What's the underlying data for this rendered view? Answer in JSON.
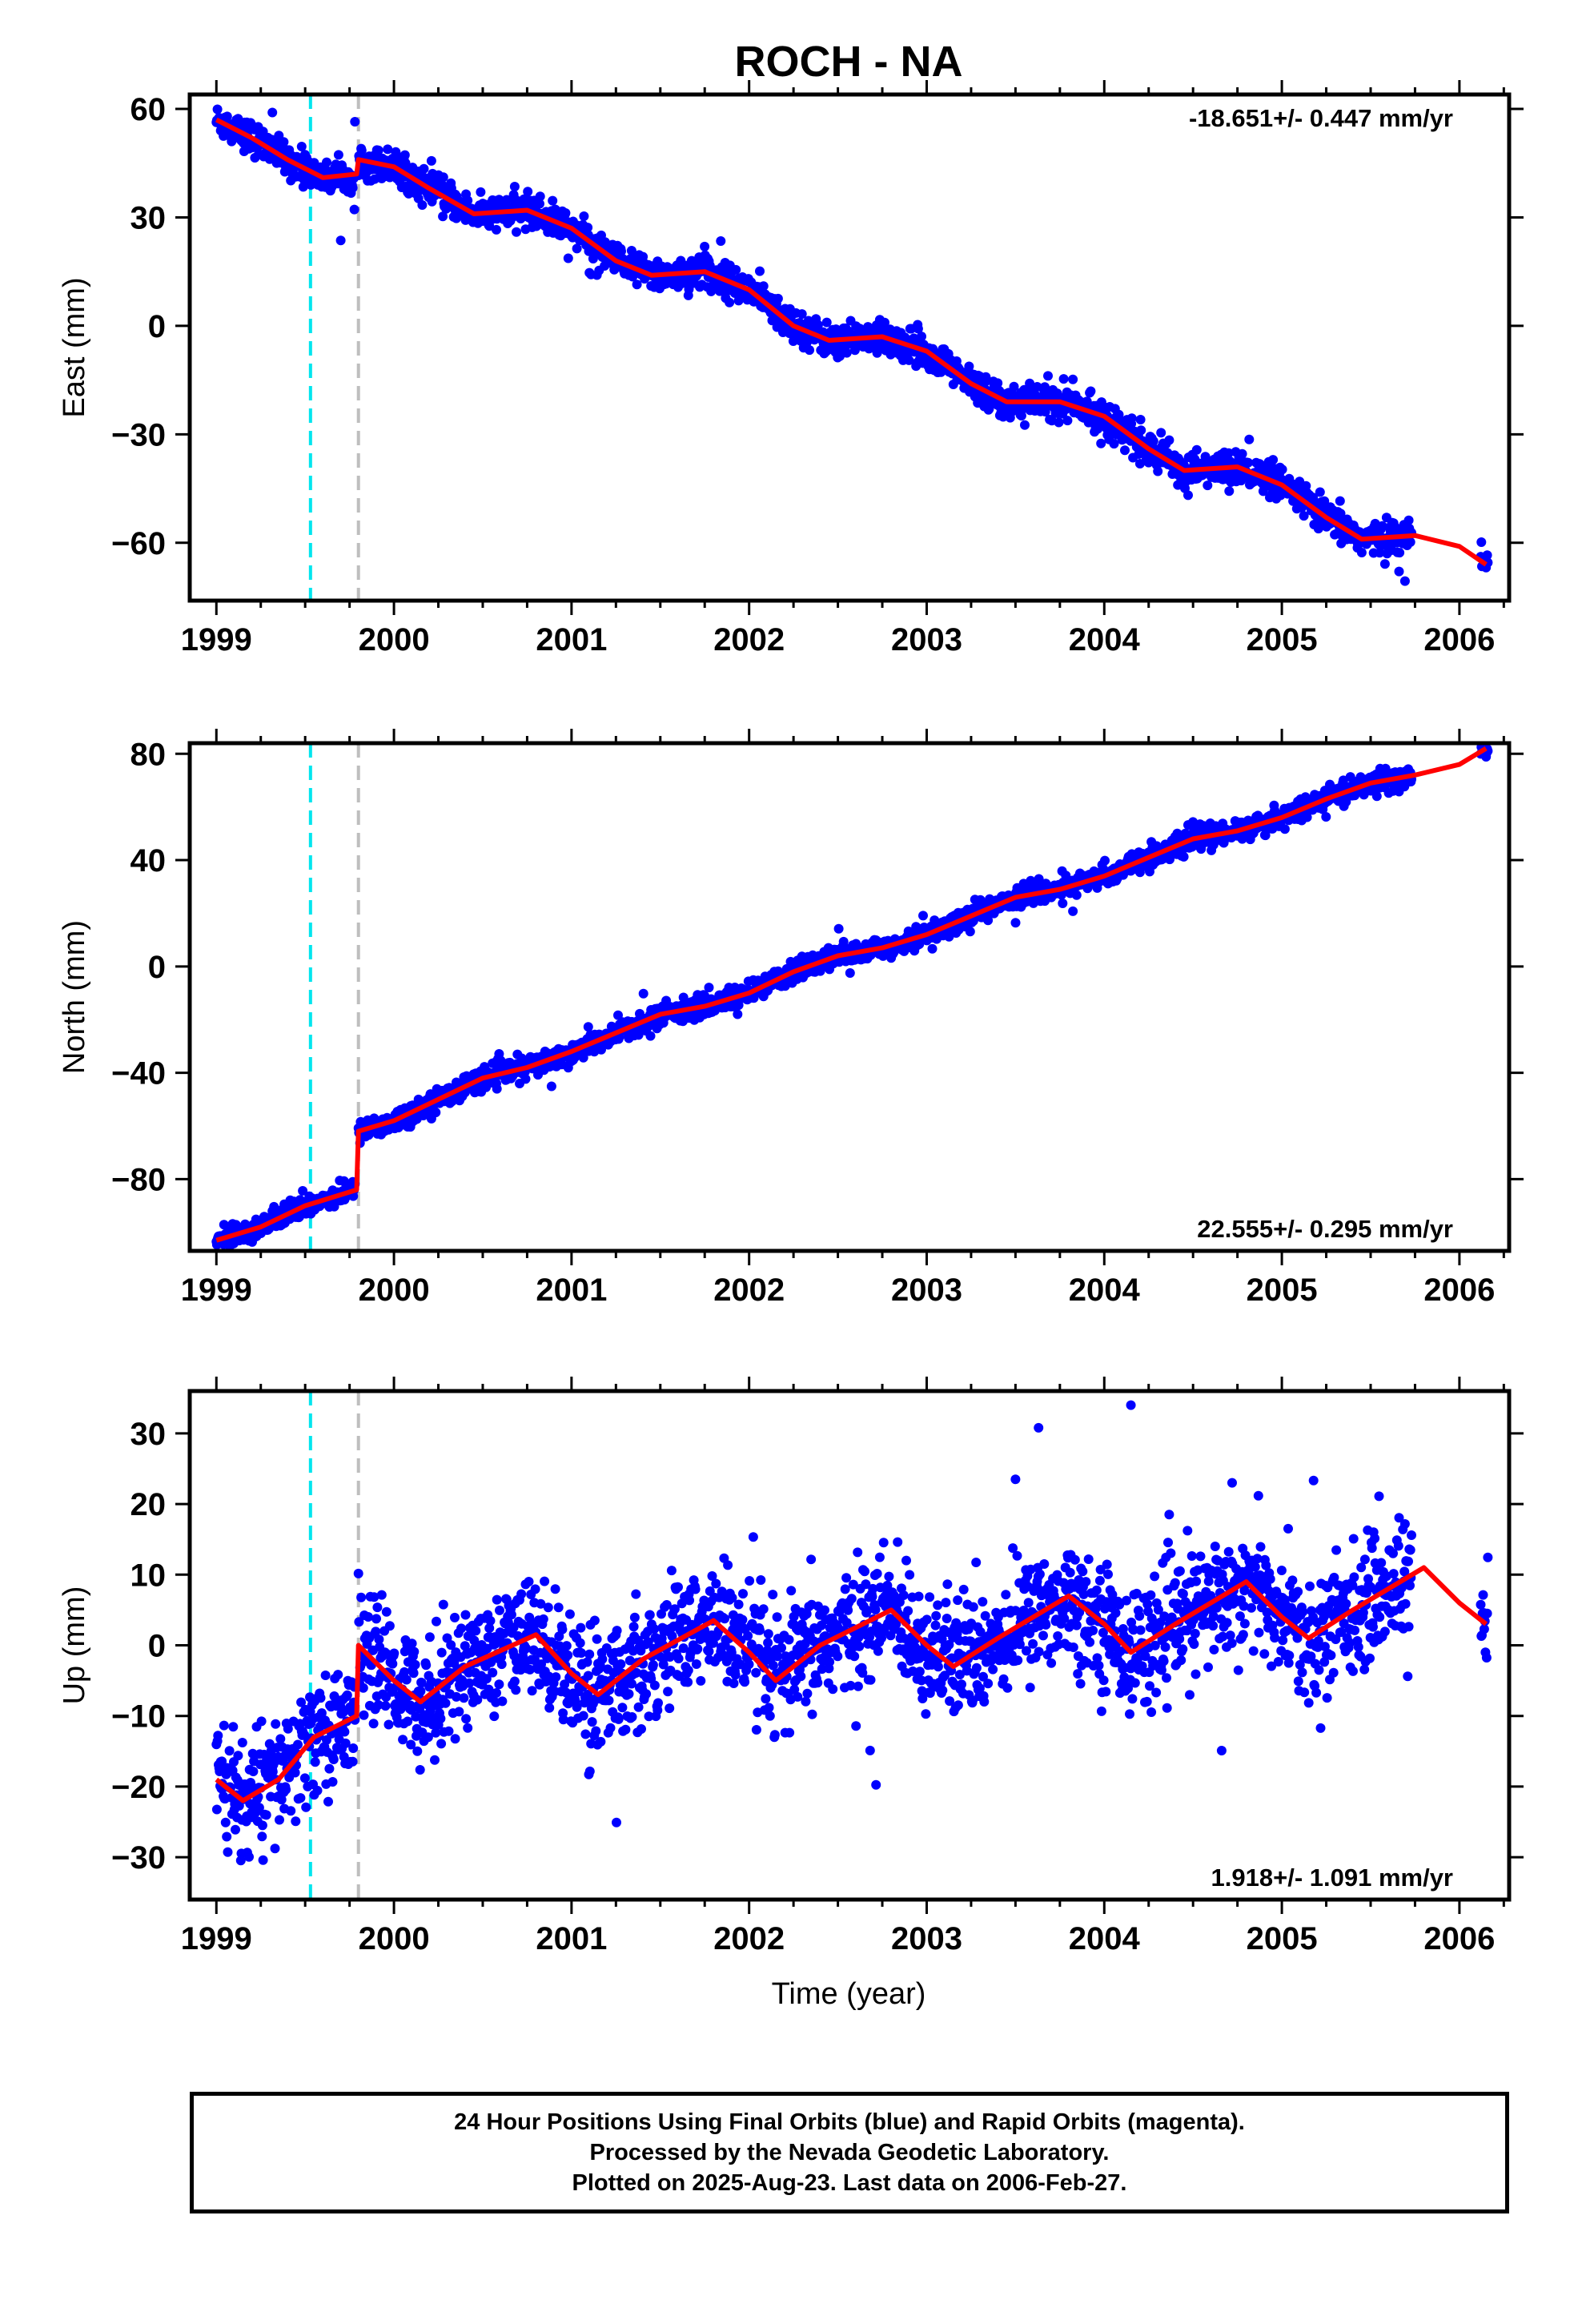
{
  "title": "ROCH - NA",
  "xlabel": "Time (year)",
  "footer": {
    "line1": "24 Hour Positions Using Final Orbits (blue) and Rapid Orbits (magenta).",
    "line2": "Processed by the Nevada Geodetic Laboratory.",
    "line3": "Plotted on 2025-Aug-23. Last data on 2006-Feb-27."
  },
  "colors": {
    "data": "#0000ff",
    "model": "#ff0000",
    "event_cyan": "#00e5ee",
    "event_gray": "#bebebe"
  },
  "chart_data": [
    {
      "type": "scatter",
      "panel": "east",
      "ylabel": "East (mm)",
      "rate_label": "-18.651+/- 0.447 mm/yr",
      "xlim": [
        1998.85,
        2006.28
      ],
      "ylim": [
        -76,
        64
      ],
      "x_ticks": [
        1999,
        2000,
        2001,
        2002,
        2003,
        2004,
        2005,
        2006
      ],
      "y_ticks": [
        60,
        30,
        0,
        -30,
        -60
      ],
      "y_tick_labels": [
        "60",
        "30",
        "0",
        "−30",
        "−60"
      ],
      "events": [
        {
          "x": 1999.53,
          "color": "cyan"
        },
        {
          "x": 1999.8,
          "color": "gray"
        }
      ],
      "data_range": [
        [
          1999.0,
          1999.78
        ],
        [
          1999.8,
          2005.73
        ],
        [
          2006.12,
          2006.16
        ]
      ],
      "model": [
        [
          1999.0,
          57
        ],
        [
          1999.2,
          52
        ],
        [
          1999.4,
          46
        ],
        [
          1999.6,
          41
        ],
        [
          1999.79,
          42
        ],
        [
          1999.8,
          46
        ],
        [
          2000.0,
          44
        ],
        [
          2000.2,
          38
        ],
        [
          2000.45,
          31
        ],
        [
          2000.75,
          32
        ],
        [
          2001.0,
          27
        ],
        [
          2001.25,
          18
        ],
        [
          2001.45,
          14
        ],
        [
          2001.75,
          15
        ],
        [
          2002.0,
          10
        ],
        [
          2002.25,
          0
        ],
        [
          2002.45,
          -4
        ],
        [
          2002.75,
          -3
        ],
        [
          2003.0,
          -7
        ],
        [
          2003.25,
          -16
        ],
        [
          2003.45,
          -21
        ],
        [
          2003.75,
          -21
        ],
        [
          2004.0,
          -25
        ],
        [
          2004.25,
          -34
        ],
        [
          2004.45,
          -40
        ],
        [
          2004.75,
          -39
        ],
        [
          2005.0,
          -44
        ],
        [
          2005.25,
          -53
        ],
        [
          2005.45,
          -59
        ],
        [
          2005.75,
          -58
        ],
        [
          2006.0,
          -61
        ],
        [
          2006.15,
          -66
        ]
      ],
      "scatter_spread": 2.2
    },
    {
      "type": "scatter",
      "panel": "north",
      "ylabel": "North (mm)",
      "rate_label": "22.555+/- 0.295 mm/yr",
      "xlim": [
        1998.85,
        2006.28
      ],
      "ylim": [
        -107,
        84
      ],
      "x_ticks": [
        1999,
        2000,
        2001,
        2002,
        2003,
        2004,
        2005,
        2006
      ],
      "y_ticks": [
        80,
        40,
        0,
        -40,
        -80
      ],
      "y_tick_labels": [
        "80",
        "40",
        "0",
        "−40",
        "−80"
      ],
      "events": [
        {
          "x": 1999.53,
          "color": "cyan"
        },
        {
          "x": 1999.8,
          "color": "gray"
        }
      ],
      "data_range": [
        [
          1999.0,
          1999.78
        ],
        [
          1999.8,
          2005.73
        ],
        [
          2006.12,
          2006.16
        ]
      ],
      "model": [
        [
          1999.0,
          -103
        ],
        [
          1999.25,
          -98
        ],
        [
          1999.5,
          -90
        ],
        [
          1999.79,
          -84
        ],
        [
          1999.8,
          -62
        ],
        [
          2000.0,
          -58
        ],
        [
          2000.25,
          -50
        ],
        [
          2000.5,
          -42
        ],
        [
          2000.75,
          -38
        ],
        [
          2001.0,
          -32
        ],
        [
          2001.25,
          -25
        ],
        [
          2001.5,
          -18
        ],
        [
          2001.75,
          -15
        ],
        [
          2002.0,
          -10
        ],
        [
          2002.25,
          -2
        ],
        [
          2002.5,
          4
        ],
        [
          2002.75,
          7
        ],
        [
          2003.0,
          12
        ],
        [
          2003.25,
          19
        ],
        [
          2003.5,
          26
        ],
        [
          2003.75,
          29
        ],
        [
          2004.0,
          34
        ],
        [
          2004.25,
          41
        ],
        [
          2004.5,
          48
        ],
        [
          2004.75,
          51
        ],
        [
          2005.0,
          56
        ],
        [
          2005.25,
          63
        ],
        [
          2005.5,
          69
        ],
        [
          2005.75,
          72
        ],
        [
          2006.0,
          76
        ],
        [
          2006.15,
          82
        ]
      ],
      "scatter_spread": 2.0
    },
    {
      "type": "scatter",
      "panel": "up",
      "ylabel": "Up (mm)",
      "rate_label": "1.918+/- 1.091 mm/yr",
      "xlim": [
        1998.85,
        2006.28
      ],
      "ylim": [
        -36,
        36
      ],
      "x_ticks": [
        1999,
        2000,
        2001,
        2002,
        2003,
        2004,
        2005,
        2006
      ],
      "y_ticks": [
        30,
        20,
        10,
        0,
        -10,
        -20,
        -30
      ],
      "y_tick_labels": [
        "30",
        "20",
        "10",
        "0",
        "−10",
        "−20",
        "−30"
      ],
      "events": [
        {
          "x": 1999.53,
          "color": "cyan"
        },
        {
          "x": 1999.8,
          "color": "gray"
        }
      ],
      "data_range": [
        [
          1999.0,
          1999.78
        ],
        [
          1999.8,
          2005.73
        ],
        [
          2006.12,
          2006.16
        ]
      ],
      "model": [
        [
          1999.0,
          -19
        ],
        [
          1999.15,
          -22
        ],
        [
          1999.35,
          -19
        ],
        [
          1999.55,
          -13
        ],
        [
          1999.79,
          -10
        ],
        [
          1999.8,
          0
        ],
        [
          2000.0,
          -5
        ],
        [
          2000.15,
          -8
        ],
        [
          2000.4,
          -3
        ],
        [
          2000.8,
          1.5
        ],
        [
          2001.0,
          -4
        ],
        [
          2001.15,
          -7
        ],
        [
          2001.4,
          -2
        ],
        [
          2001.8,
          3.5
        ],
        [
          2002.0,
          -1
        ],
        [
          2002.15,
          -5
        ],
        [
          2002.4,
          0
        ],
        [
          2002.8,
          5
        ],
        [
          2003.0,
          0
        ],
        [
          2003.15,
          -3
        ],
        [
          2003.4,
          1
        ],
        [
          2003.8,
          7
        ],
        [
          2004.0,
          3
        ],
        [
          2004.15,
          -1
        ],
        [
          2004.4,
          3
        ],
        [
          2004.8,
          9
        ],
        [
          2005.0,
          4
        ],
        [
          2005.15,
          1
        ],
        [
          2005.4,
          5
        ],
        [
          2005.8,
          11
        ],
        [
          2006.0,
          6
        ],
        [
          2006.15,
          3
        ]
      ],
      "scatter_spread": 4.2,
      "outliers": [
        [
          2003.63,
          30.8
        ],
        [
          2004.15,
          34
        ],
        [
          2003.5,
          23.5
        ],
        [
          2004.72,
          23
        ]
      ]
    }
  ]
}
